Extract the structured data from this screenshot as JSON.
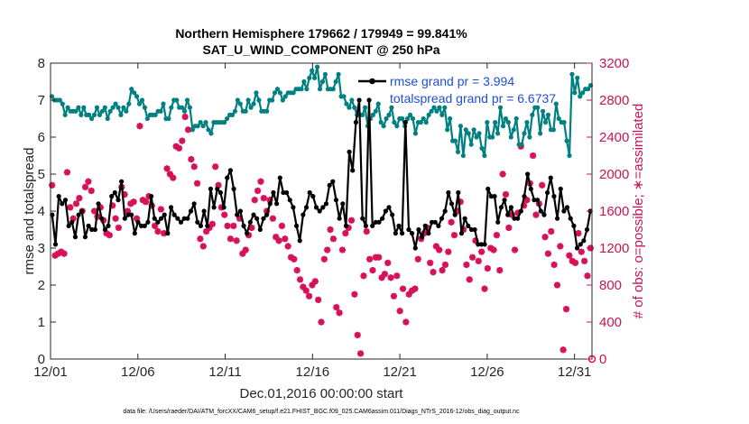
{
  "colors": {
    "rmse": "#000000",
    "spread": "#008080",
    "obs": "#d6115a",
    "legend_text": "#1f4fd6",
    "right_axis": "#c8154f"
  },
  "chart_data": {
    "type": "line",
    "title": "Northern Hemisphere 179662 / 179949 = 99.841%",
    "subtitle": "SAT_U_WIND_COMPONENT @ 250 hPa",
    "xlabel": "Dec.01,2016 00:00:00 start",
    "ylabel": "rmse and totalspread",
    "y2label": "# of obs: o=possible; ∗=assimilated",
    "footer": "data file: /Users/raeder/DAI/ATM_forcXX/CAM6_setup/f.e21.FHIST_BGC.f09_025.CAM6assim.011/Diags_NTrS_2016-12/obs_diag_output.nc",
    "xlim": [
      1,
      32
    ],
    "ylim": [
      0,
      8
    ],
    "y2lim": [
      0,
      3200
    ],
    "xticks": [
      1,
      6,
      11,
      16,
      21,
      26,
      31
    ],
    "xtick_labels": [
      "12/01",
      "12/06",
      "12/11",
      "12/16",
      "12/21",
      "12/26",
      "12/31"
    ],
    "yticks": [
      0,
      1,
      2,
      3,
      4,
      5,
      6,
      7,
      8
    ],
    "ytick_labels": [
      "0",
      "1",
      "2",
      "3",
      "4",
      "5",
      "6",
      "7",
      "8"
    ],
    "y2ticks": [
      0,
      400,
      800,
      1200,
      1600,
      2000,
      2400,
      2800,
      3200
    ],
    "y2tick_labels": [
      "0",
      "400",
      "800",
      "1200",
      "1600",
      "2000",
      "2400",
      "2800",
      "3200"
    ],
    "legend_position": "top-right",
    "grid": false,
    "series": [
      {
        "name": "rmse grand pr = 3.994",
        "axis": "left",
        "marker": "filled-circle",
        "values": [
          3.9,
          3.1,
          4.4,
          4.2,
          4.3,
          3.6,
          3.7,
          3.3,
          3.9,
          4.0,
          3.3,
          3.6,
          3.5,
          3.5,
          4.2,
          3.8,
          3.5,
          3.6,
          4.4,
          4.5,
          4.3,
          4.8,
          3.8,
          3.9,
          3.9,
          3.4,
          3.7,
          3.6,
          3.6,
          3.7,
          4.4,
          3.8,
          3.7,
          3.8,
          3.9,
          3.4,
          4.1,
          3.9,
          3.8,
          3.7,
          3.8,
          3.8,
          4.0,
          4.2,
          3.7,
          3.6,
          4.0,
          3.6,
          4.6,
          4.1,
          4.6,
          4.5,
          4.1,
          4.9,
          5.1,
          4.6,
          3.9,
          4.0,
          3.6,
          3.4,
          3.7,
          3.9,
          3.8,
          3.5,
          3.8,
          3.9,
          4.2,
          4.5,
          4.2,
          4.9,
          4.5,
          4.5,
          4.3,
          4.1,
          3.6,
          3.2,
          3.9,
          4.1,
          4.5,
          4.4,
          4.1,
          4.0,
          4.1,
          4.2,
          4.7,
          4.8,
          4.3,
          3.8,
          4.2,
          3.6,
          5.6,
          5.1,
          6.4,
          7.0,
          3.8,
          3.6,
          7.0,
          3.6,
          3.7,
          3.7,
          3.8,
          4.0,
          4.1,
          3.9,
          3.4,
          3.6,
          3.4,
          6.4,
          3.5,
          3.4,
          3.0,
          3.5,
          3.3,
          3.6,
          3.4,
          3.7,
          3.7,
          3.6,
          3.8,
          4.0,
          4.5,
          4.2,
          3.9,
          4.5,
          3.4,
          3.8,
          3.6,
          3.5,
          3.5,
          3.1,
          3.1,
          3.1,
          4.6,
          4.4,
          4.4,
          3.7,
          4.1,
          4.3,
          3.9,
          4.1,
          3.8,
          3.8,
          4.0,
          4.4,
          5.0,
          4.6,
          4.3,
          4.3,
          4.0,
          3.9,
          4.5,
          4.9,
          4.4,
          3.8,
          4.6,
          4.0,
          4.1,
          3.8,
          3.6,
          3.0,
          3.1,
          3.2,
          3.5,
          4.0
        ]
      },
      {
        "name": "totalspread grand pr = 6.6737",
        "axis": "left",
        "marker": "filled-circle",
        "values": [
          7.1,
          7.0,
          7.0,
          7.0,
          6.9,
          6.6,
          6.8,
          6.7,
          6.7,
          6.7,
          6.8,
          6.6,
          6.8,
          6.6,
          6.6,
          6.5,
          6.6,
          6.8,
          6.6,
          6.7,
          6.8,
          6.5,
          6.7,
          6.8,
          6.9,
          6.8,
          6.6,
          6.8,
          6.7,
          6.9,
          7.3,
          7.2,
          7.1,
          6.9,
          7.0,
          6.8,
          6.5,
          6.6,
          6.6,
          6.6,
          6.7,
          6.7,
          6.9,
          6.5,
          6.5,
          6.8,
          7.0,
          7.0,
          6.8,
          6.8,
          6.7,
          7.0,
          6.8,
          6.2,
          6.3,
          6.3,
          6.4,
          6.3,
          6.4,
          6.2,
          6.1,
          6.4,
          6.4,
          6.4,
          6.4,
          6.4,
          6.5,
          6.6,
          6.6,
          6.7,
          7.0,
          6.9,
          6.7,
          6.7,
          7.0,
          6.8,
          6.9,
          7.2,
          7.0,
          6.7,
          6.7,
          6.7,
          7.0,
          7.0,
          7.2,
          7.3,
          7.2,
          7.0,
          7.1,
          7.2,
          7.2,
          7.2,
          7.3,
          7.3,
          7.3,
          7.5,
          7.3,
          7.6,
          7.8,
          7.6,
          7.9,
          7.3,
          7.5,
          7.7,
          7.3,
          7.3,
          7.3,
          7.5,
          7.7,
          7.1,
          7.1,
          6.9,
          6.8,
          7.0,
          6.8,
          6.6,
          6.6,
          6.6,
          6.8,
          6.3,
          6.5,
          6.6,
          6.7,
          6.9,
          6.4,
          6.3,
          6.5,
          6.6,
          6.8,
          6.4,
          6.3,
          6.5,
          6.5,
          6.3,
          6.5,
          6.6,
          6.5,
          6.1,
          6.4,
          6.4,
          6.5,
          6.4,
          6.6,
          6.7,
          6.8,
          6.7,
          6.8,
          6.6,
          6.8,
          6.2,
          6.5,
          5.9,
          5.9,
          5.6,
          6.3,
          5.5,
          6.2,
          6.1,
          5.8,
          6.2,
          6.0,
          6.1,
          5.7,
          5.5,
          6.4,
          6.0,
          6.0,
          6.4,
          6.1,
          6.8,
          6.3,
          6.5,
          6.4,
          6.0,
          6.2,
          6.5,
          5.8,
          5.8,
          6.1,
          6.4,
          6.0,
          6.6,
          6.8,
          6.8,
          6.1,
          6.7,
          6.4,
          6.6,
          6.2,
          6.2,
          6.9,
          6.5,
          6.4,
          6.4,
          5.9,
          5.5,
          7.7,
          7.2,
          7.6,
          7.1,
          7.2,
          7.3,
          7.3,
          7.4
        ]
      },
      {
        "name": "obs assimilated",
        "axis": "right",
        "marker": "asterisk",
        "values": [
          1880,
          1120,
          1140,
          1160,
          1140,
          2020,
          1640,
          1520,
          1680,
          1740,
          1600,
          1860,
          1920,
          1820,
          1600,
          1540,
          1640,
          1500,
          1360,
          1340,
          1660,
          1520,
          1420,
          1860,
          1780,
          1600,
          1680,
          1700,
          1520,
          2520,
          1720,
          1700,
          1760,
          1660,
          1440,
          1380,
          1620,
          1360,
          2060,
          2000,
          1960,
          2300,
          2280,
          2360,
          2620,
          2480,
          2160,
          2080,
          1900,
          1300,
          1220,
          1380,
          1420,
          1460,
          2080,
          1880,
          1640,
          1560,
          1440,
          1300,
          1440,
          1280,
          1520,
          1140,
          1180,
          1340,
          1420,
          1720,
          1820,
          1920,
          1740,
          1600,
          1720,
          1520,
          1320,
          1280,
          1440,
          1300,
          1220,
          1100,
          1080,
          960,
          860,
          780,
          740,
          680,
          800,
          840,
          640,
          400,
          1080,
          1180,
          1400,
          1300,
          560,
          500,
          1180,
          1360,
          1420,
          1500,
          700,
          260,
          60,
          900,
          1380,
          1080,
          960,
          1100,
          1100,
          880,
          920,
          1040,
          880,
          680,
          900,
          520,
          760,
          400,
          700,
          740,
          760,
          1080,
          1300,
          1360,
          1420,
          1040,
          940,
          1220,
          1180,
          960,
          1020,
          1160,
          1480,
          1340,
          1600,
          1700,
          1400,
          1020,
          860,
          1100,
          1280,
          1060,
          1160,
          760,
          980,
          1200,
          1180,
          1340,
          960,
          2000,
          1780,
          1420,
          1560,
          1180,
          1580,
          2300,
          1660,
          1720,
          1900,
          2200,
          1560,
          1680,
          1880,
          1320,
          1140,
          1380,
          1020,
          800,
          1220,
          100,
          540,
          1120,
          1060,
          1040,
          1360,
          1160,
          1060,
          900,
          1200
        ]
      },
      {
        "name": "obs possible",
        "axis": "right",
        "marker": "circle",
        "values": [
          0
        ]
      }
    ]
  }
}
